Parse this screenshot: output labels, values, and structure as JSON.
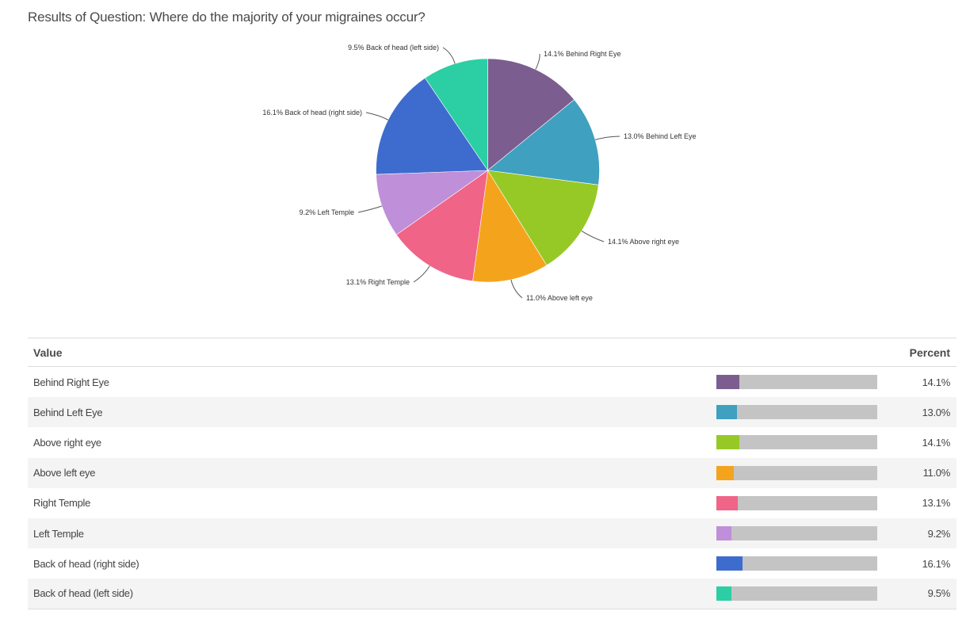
{
  "page": {
    "title": "Results of Question: Where do the majority of your migraines occur?"
  },
  "table": {
    "header_value": "Value",
    "header_percent": "Percent",
    "rows": [
      {
        "label": "Behind Right Eye",
        "percent": "14.1%",
        "value": 14.1,
        "color": "#7b5e8f"
      },
      {
        "label": "Behind Left Eye",
        "percent": "13.0%",
        "value": 13.0,
        "color": "#3fa0c0"
      },
      {
        "label": "Above right eye",
        "percent": "14.1%",
        "value": 14.1,
        "color": "#97c926"
      },
      {
        "label": "Above left eye",
        "percent": "11.0%",
        "value": 11.0,
        "color": "#f4a41c"
      },
      {
        "label": "Right Temple",
        "percent": "13.1%",
        "value": 13.1,
        "color": "#f06487"
      },
      {
        "label": "Left Temple",
        "percent": "9.2%",
        "value": 9.2,
        "color": "#bf8fd9"
      },
      {
        "label": "Back of head (right side)",
        "percent": "16.1%",
        "value": 16.1,
        "color": "#3d6cce"
      },
      {
        "label": "Back of head (left side)",
        "percent": "9.5%",
        "value": 9.5,
        "color": "#2bcfa3"
      }
    ]
  },
  "chart_data": {
    "type": "pie",
    "title": "Results of Question: Where do the majority of your migraines occur?",
    "categories": [
      "Behind Right Eye",
      "Behind Left Eye",
      "Above right eye",
      "Above left eye",
      "Right Temple",
      "Left Temple",
      "Back of head (right side)",
      "Back of head (left side)"
    ],
    "values": [
      14.1,
      13.0,
      14.1,
      11.0,
      13.1,
      9.2,
      16.1,
      9.5
    ],
    "labels": [
      "14.1% Behind Right Eye",
      "13.0% Behind Left Eye",
      "14.1% Above right eye",
      "11.0% Above left eye",
      "13.1% Right Temple",
      "9.2% Left Temple",
      "16.1% Back of head (right side)",
      "9.5% Back of head (left side)"
    ],
    "colors": [
      "#7b5e8f",
      "#3fa0c0",
      "#97c926",
      "#f4a41c",
      "#f06487",
      "#bf8fd9",
      "#3d6cce",
      "#2bcfa3"
    ],
    "start_angle": "12 o'clock, clockwise",
    "legend": "none (data labels with leader lines)"
  }
}
